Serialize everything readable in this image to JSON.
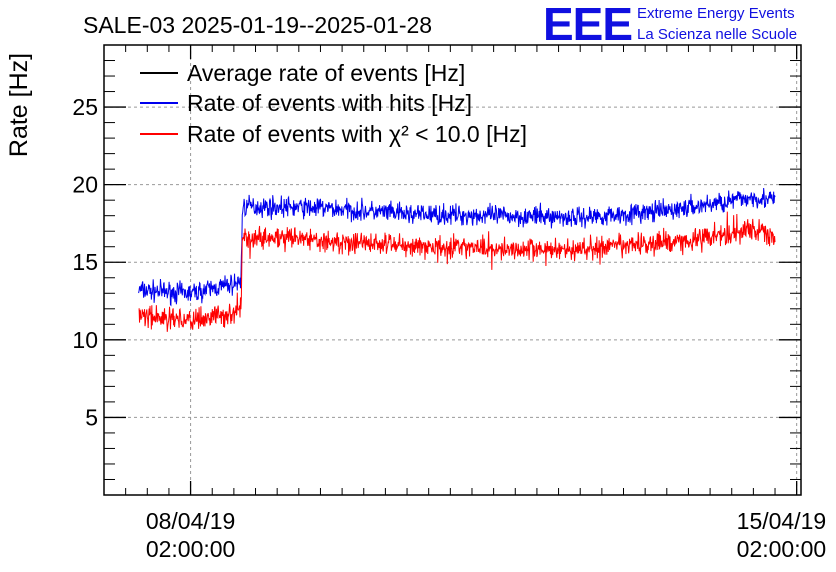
{
  "chart_data": {
    "type": "line",
    "title": "SALE-03 2025-01-19--2025-01-28",
    "ylabel": "Rate [Hz]",
    "xlabel": "",
    "ylim": [
      0,
      29
    ],
    "yticks": [
      {
        "value": 5,
        "label": "5"
      },
      {
        "value": 10,
        "label": "10"
      },
      {
        "value": 15,
        "label": "15"
      },
      {
        "value": 20,
        "label": "20"
      },
      {
        "value": 25,
        "label": "25"
      }
    ],
    "xticks": [
      {
        "value": 0,
        "line1": "08/04/19",
        "line2": "02:00:00"
      },
      {
        "value": 7,
        "line1": "15/04/19",
        "line2": "02:00:00"
      }
    ],
    "xlim": [
      -1.0,
      7.05
    ],
    "grid": true,
    "legend_placement": "top-left",
    "legend": [
      {
        "label": "Average rate of events [Hz]",
        "color": "#000000"
      },
      {
        "label": "Rate of events with hits [Hz]",
        "color": "#0000ee"
      },
      {
        "label": "Rate of events with χ² < 10.0 [Hz]",
        "color": "#ff0000"
      }
    ],
    "series": [
      {
        "color": "#0000ee",
        "x": [
          -0.6,
          0.0,
          0.58,
          0.6,
          1.5,
          2.5,
          3.5,
          4.5,
          5.5,
          6.5,
          6.75
        ],
        "y": [
          13.2,
          13.0,
          13.7,
          18.6,
          18.5,
          18.1,
          18.0,
          17.9,
          18.3,
          19.2,
          19.0
        ],
        "noise": 0.5
      },
      {
        "color": "#ff0000",
        "x": [
          -0.6,
          0.0,
          0.58,
          0.6,
          1.5,
          2.5,
          3.5,
          4.5,
          5.5,
          6.5,
          6.75
        ],
        "y": [
          11.6,
          11.2,
          11.9,
          16.6,
          16.4,
          16.1,
          15.9,
          15.8,
          16.3,
          17.1,
          16.7
        ],
        "noise": 0.5
      }
    ]
  },
  "logo": {
    "mark": "EEE",
    "line1": "Extreme Energy Events",
    "line2": "La Scienza nelle Scuole"
  }
}
